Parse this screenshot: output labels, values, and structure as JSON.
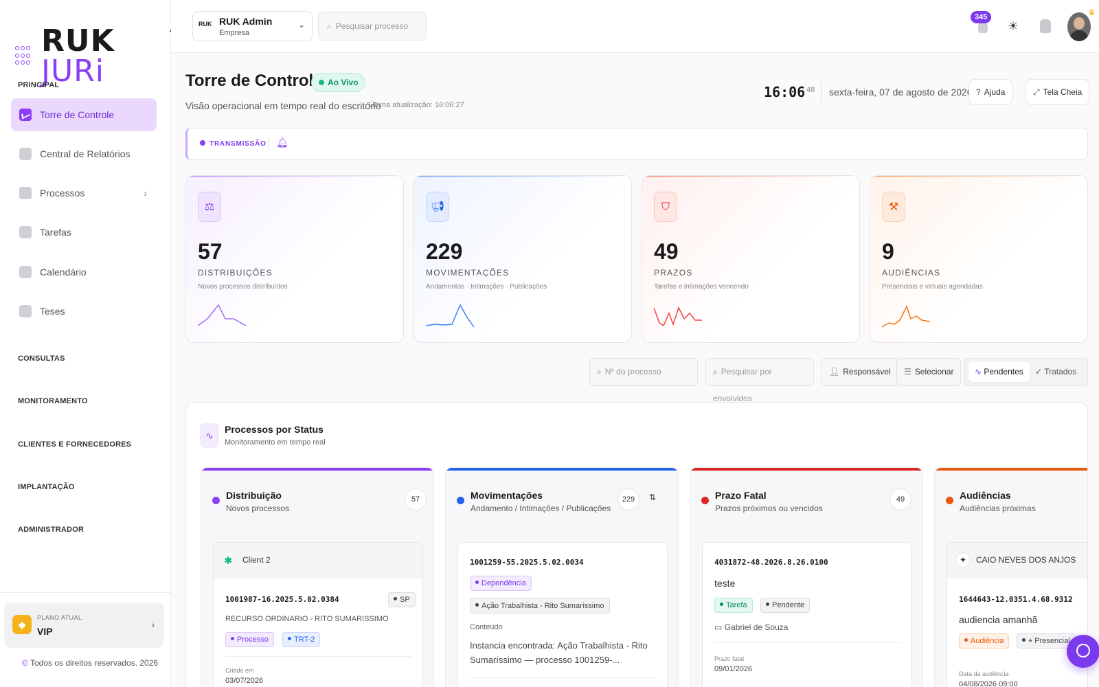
{
  "brand": {
    "part1": "RUK",
    "part2": "JURi"
  },
  "sidebar": {
    "section_principal": "PRINCIPAL",
    "items": [
      {
        "label": "Torre de Controle"
      },
      {
        "label": "Central de Relatórios"
      },
      {
        "label": "Processos"
      },
      {
        "label": "Tarefas"
      },
      {
        "label": "Calendário"
      },
      {
        "label": "Teses"
      }
    ],
    "sections": [
      "CONSULTAS",
      "MONITORAMENTO",
      "CLIENTES E FORNECEDORES",
      "IMPLANTAÇÃO",
      "ADMINISTRADOR"
    ],
    "plan_label": "PLANO ATUAL",
    "plan_value": "VIP",
    "copyright": "Todos os direitos reservados. 2026"
  },
  "topbar": {
    "company_logo": "RUK",
    "company_name": "RUK Admin",
    "company_type": "Empresa",
    "search_placeholder": "Pesquisar processo",
    "notifications": "345"
  },
  "header": {
    "title": "Torre de Controle",
    "live_badge": "Ao Vivo",
    "subtitle": "Visão operacional em tempo real do escritório",
    "last_update": "Última atualização: 16:06:27",
    "clock_hm": "16:06",
    "clock_s": "48",
    "date": "sexta-feira, 07 de agosto de 2026",
    "help_label": "Ajuda",
    "fullscreen_label": "Tela Cheia"
  },
  "ticker": {
    "label": "TRANSMISSÃO"
  },
  "stats": [
    {
      "value": "57",
      "label": "DISTRIBUIÇÕES",
      "sub": "Novos processos distribuídos",
      "color": "#8b3ff5"
    },
    {
      "value": "229",
      "label": "MOVIMENTAÇÕES",
      "sub": "Andamentos · Intimações · Publicações",
      "color": "#2563eb"
    },
    {
      "value": "49",
      "label": "PRAZOS",
      "sub": "Tarefas e intimações vencendo",
      "color": "#dc2626"
    },
    {
      "value": "9",
      "label": "AUDIÊNCIAS",
      "sub": "Presenciais e virtuais agendadas",
      "color": "#ea580c"
    }
  ],
  "filters": {
    "process_placeholder": "Nº do processo",
    "involved_placeholder": "Pesquisar por envolvidos",
    "responsavel": "Responsável",
    "selecionar": "Selecionar",
    "pendentes": "Pendentes",
    "tratados": "Tratados"
  },
  "panel": {
    "title": "Processos por Status",
    "subtitle": "Monitoramento em tempo real",
    "columns": [
      {
        "title": "Distribuição",
        "sub": "Novos processos",
        "count": "57",
        "color": "#8b3ff5",
        "card": {
          "client": "Client 2",
          "number": "1001987-16.2025.5.02.0384",
          "uf": "SP",
          "desc": "RECURSO ORDINARIO - RITO SUMARISSIMO",
          "tags": [
            "Processo",
            "TRT-2"
          ],
          "created_label": "Criado em",
          "created": "03/07/2026"
        }
      },
      {
        "title": "Movimentações",
        "sub": "Andamento / Intimações / Publicações",
        "count": "229",
        "color": "#2563eb",
        "card": {
          "number": "1001259-55.2025.5.02.0034",
          "tag1": "Dependência",
          "tag2": "Ação Trabalhista - Rito Sumaríssimo",
          "content_label": "Conteúdo",
          "content": "Instancia encontrada: Ação Trabalhista - Rito Sumaríssimo — processo 1001259-..."
        }
      },
      {
        "title": "Prazo Fatal",
        "sub": "Prazos próximos ou vencidos",
        "count": "49",
        "color": "#dc2626",
        "card": {
          "number": "4031872-48.2026.8.26.0100",
          "text": "teste",
          "tag1": "Tarefa",
          "tag2": "Pendente",
          "person": "Gabriel de Souza",
          "deadline_label": "Prazo fatal",
          "deadline": "09/01/2026"
        }
      },
      {
        "title": "Audiências",
        "sub": "Audiências próximas",
        "color": "#ea580c",
        "card": {
          "client": "CAIO NEVES DOS ANJOS",
          "number": "1644643-12.0351.4.68.9312",
          "text": "audiencia amanhã",
          "tag1": "Audiência",
          "tag2": "Presencial",
          "date_label": "Data da audiência",
          "date": "04/08/2026 09:00"
        }
      }
    ]
  }
}
